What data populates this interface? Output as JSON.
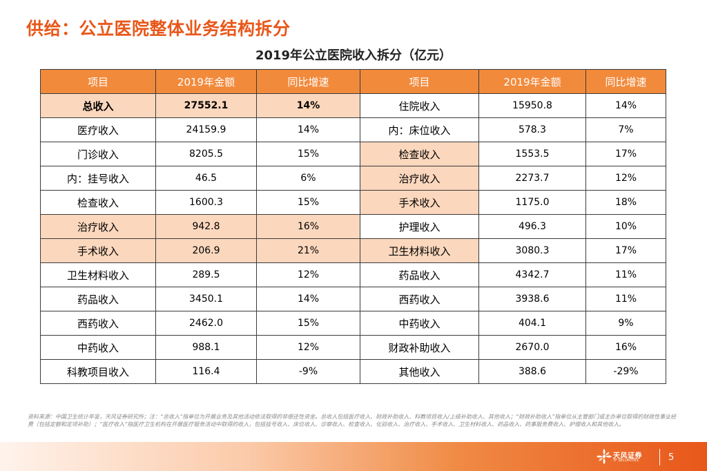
{
  "page": {
    "title": "供给：公立医院整体业务结构拆分",
    "table_title": "2019年公立医院收入拆分（亿元）",
    "page_number": "5"
  },
  "table": {
    "headers": [
      "项目",
      "2019年金额",
      "同比增速",
      "项目",
      "2019年金额",
      "同比增速"
    ],
    "rows": [
      {
        "ln": "总收入",
        "la": "27552.1",
        "lg": "14%",
        "rn": "住院收入",
        "ra": "15950.8",
        "rg": "14%"
      },
      {
        "ln": "医疗收入",
        "la": "24159.9",
        "lg": "14%",
        "rn": "内：床位收入",
        "ra": "578.3",
        "rg": "7%"
      },
      {
        "ln": "门诊收入",
        "la": "8205.5",
        "lg": "15%",
        "rn": "检查收入",
        "ra": "1553.5",
        "rg": "17%"
      },
      {
        "ln": "内：挂号收入",
        "la": "46.5",
        "lg": "6%",
        "rn": "治疗收入",
        "ra": "2273.7",
        "rg": "12%"
      },
      {
        "ln": "检查收入",
        "la": "1600.3",
        "lg": "15%",
        "rn": "手术收入",
        "ra": "1175.0",
        "rg": "18%"
      },
      {
        "ln": "治疗收入",
        "la": "942.8",
        "lg": "16%",
        "rn": "护理收入",
        "ra": "496.3",
        "rg": "10%"
      },
      {
        "ln": "手术收入",
        "la": "206.9",
        "lg": "21%",
        "rn": "卫生材料收入",
        "ra": "3080.3",
        "rg": "17%"
      },
      {
        "ln": "卫生材料收入",
        "la": "289.5",
        "lg": "12%",
        "rn": "药品收入",
        "ra": "4342.7",
        "rg": "11%"
      },
      {
        "ln": "药品收入",
        "la": "3450.1",
        "lg": "14%",
        "rn": "西药收入",
        "ra": "3938.6",
        "rg": "11%"
      },
      {
        "ln": "西药收入",
        "la": "2462.0",
        "lg": "15%",
        "rn": "中药收入",
        "ra": "404.1",
        "rg": "9%"
      },
      {
        "ln": "中药收入",
        "la": "988.1",
        "lg": "12%",
        "rn": "财政补助收入",
        "ra": "2670.0",
        "rg": "16%"
      },
      {
        "ln": "科教项目收入",
        "la": "116.4",
        "lg": "-9%",
        "rn": "其他收入",
        "ra": "388.6",
        "rg": "-29%"
      }
    ]
  },
  "footnote": "资料来源：中国卫生统计年鉴，天风证券研究所；注：“总收入”指单位为开展业务及其他活动依法取得的非偿还性资金。总收入包括医疗收入、财政补助收入、科教项目收入/上级补助收入、其他收入；“财政补助收入”指单位从主管部门或主办单位取得的财政性事业经费（包括定额和定项补助）；“医疗收入”指医疗卫生机构在开展医疗服务活动中取得的收入，包括挂号收入、床位收入、诊察收入、检查收入、化验收入、治疗收入、手术收入、卫生材料收入、药品收入、药事服务费收入、护理收入和其他收入。",
  "logo": {
    "name": "天风证券",
    "sub": "TF SECURITIES"
  },
  "colors": {
    "accent": "#e8571a",
    "header_bg": "#f28a3c",
    "highlight_bg": "#fbd7bd"
  }
}
